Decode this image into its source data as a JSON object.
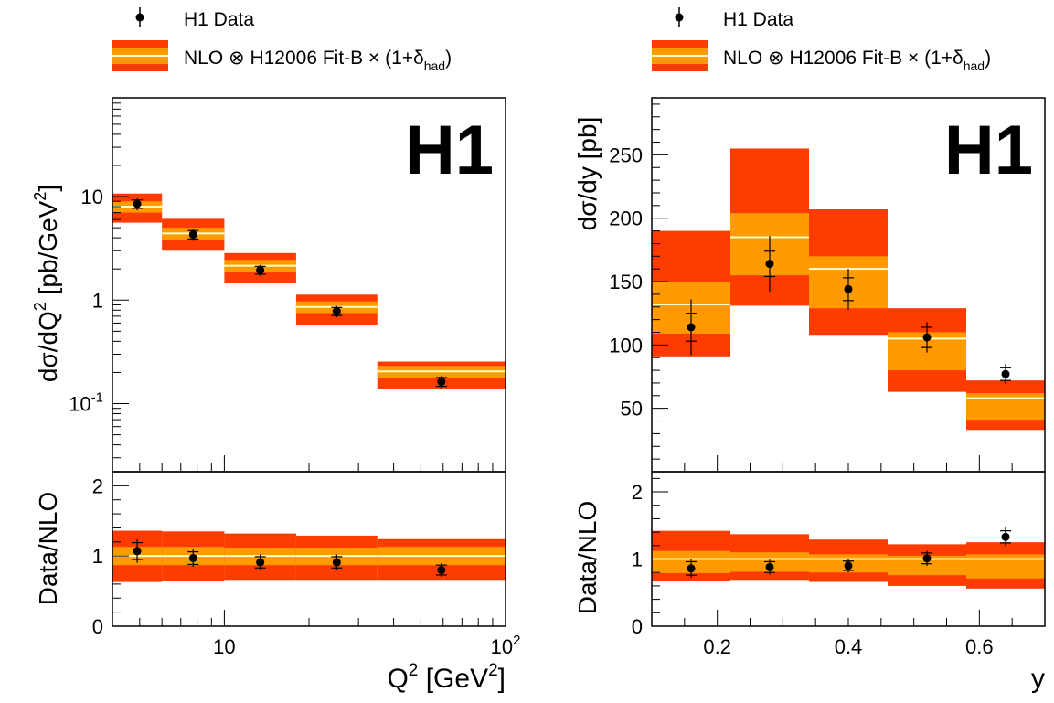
{
  "colors": {
    "outer_band": "#ff3c00",
    "inner_band": "#ff9a00",
    "central_line": "#ffffc8",
    "data_marker": "#000000"
  },
  "legend": [
    {
      "label": "H1 Data",
      "icon": "data-point-with-error-bar"
    },
    {
      "label_main": "NLO ⊗ H12006 Fit-B × (1+δ",
      "label_sub": "had",
      "label_end": ")",
      "icon": "nlo-band-swatch"
    }
  ],
  "chart_data": [
    {
      "type": "bar",
      "id": "q2",
      "logo": "H1",
      "xlabel": {
        "main": "Q",
        "sup": "2",
        "mid": " [GeV",
        "sup2": "2",
        "end": "]"
      },
      "ylabel": {
        "main": "dσ/dQ",
        "sup": "2",
        "mid": " [pb/GeV",
        "sup2": "2",
        "end": "]"
      },
      "ratio_ylabel": "Data/NLO",
      "xscale": "log",
      "yscale": "log",
      "xlim": [
        4,
        100
      ],
      "ylim": [
        0.022,
        90
      ],
      "ratio_ylim": [
        0,
        2.2
      ],
      "x_tick_labels": [
        {
          "value": 10,
          "base": "10",
          "exp": ""
        },
        {
          "value": 100,
          "base": "10",
          "exp": "2"
        }
      ],
      "y_tick_labels": [
        {
          "value": 0.1,
          "base": "10",
          "exp": "-1"
        },
        {
          "value": 1,
          "base": "1",
          "exp": ""
        },
        {
          "value": 10,
          "base": "10",
          "exp": ""
        }
      ],
      "ratio_y_tick_labels": [
        "0",
        "1",
        "2"
      ],
      "bins": [
        {
          "lo": 4,
          "hi": 6,
          "nlo": 8.0,
          "inner": [
            7.0,
            9.0
          ],
          "outer": [
            5.6,
            10.7
          ],
          "data": 8.5,
          "err": 0.8
        },
        {
          "lo": 6,
          "hi": 10,
          "nlo": 4.4,
          "inner": [
            3.8,
            5.0
          ],
          "outer": [
            3.0,
            6.1
          ],
          "data": 4.3,
          "err": 0.4
        },
        {
          "lo": 10,
          "hi": 18,
          "nlo": 2.15,
          "inner": [
            1.85,
            2.45
          ],
          "outer": [
            1.45,
            2.85
          ],
          "data": 1.95,
          "err": 0.17
        },
        {
          "lo": 18,
          "hi": 35,
          "nlo": 0.86,
          "inner": [
            0.75,
            0.97
          ],
          "outer": [
            0.58,
            1.13
          ],
          "data": 0.78,
          "err": 0.07
        },
        {
          "lo": 35,
          "hi": 100,
          "nlo": 0.205,
          "inner": [
            0.178,
            0.232
          ],
          "outer": [
            0.14,
            0.255
          ],
          "data": 0.163,
          "err": 0.016
        }
      ],
      "ratio_bins": [
        {
          "lo": 4,
          "hi": 6,
          "nlo": 1.0,
          "inner": [
            0.87,
            1.13
          ],
          "outer": [
            0.63,
            1.36
          ],
          "data": 1.07,
          "err": 0.12
        },
        {
          "lo": 6,
          "hi": 10,
          "nlo": 1.0,
          "inner": [
            0.87,
            1.13
          ],
          "outer": [
            0.64,
            1.35
          ],
          "data": 0.97,
          "err": 0.09
        },
        {
          "lo": 10,
          "hi": 18,
          "nlo": 1.0,
          "inner": [
            0.87,
            1.12
          ],
          "outer": [
            0.66,
            1.32
          ],
          "data": 0.91,
          "err": 0.08
        },
        {
          "lo": 18,
          "hi": 35,
          "nlo": 1.0,
          "inner": [
            0.87,
            1.12
          ],
          "outer": [
            0.66,
            1.29
          ],
          "data": 0.91,
          "err": 0.08
        },
        {
          "lo": 35,
          "hi": 100,
          "nlo": 1.0,
          "inner": [
            0.87,
            1.13
          ],
          "outer": [
            0.66,
            1.24
          ],
          "data": 0.8,
          "err": 0.07
        }
      ]
    },
    {
      "type": "bar",
      "id": "y",
      "logo": "H1",
      "xlabel": {
        "main": "y"
      },
      "ylabel": {
        "main": "dσ/dy [pb]"
      },
      "ratio_ylabel": "Data/NLO",
      "xscale": "linear",
      "yscale": "linear",
      "xlim": [
        0.1,
        0.7
      ],
      "ylim": [
        0,
        295
      ],
      "ratio_ylim": [
        0,
        2.3
      ],
      "x_ticks": [
        0.2,
        0.4,
        0.6
      ],
      "x_tick_labels": [
        "0.2",
        "0.4",
        "0.6"
      ],
      "y_ticks": [
        50,
        100,
        150,
        200,
        250
      ],
      "y_tick_labels": [
        "50",
        "100",
        "150",
        "200",
        "250"
      ],
      "ratio_y_ticks": [
        0,
        1,
        2
      ],
      "ratio_y_tick_labels": [
        "0",
        "1",
        "2"
      ],
      "bins": [
        {
          "lo": 0.1,
          "hi": 0.22,
          "nlo": 132,
          "inner": [
            109,
            150
          ],
          "outer": [
            91,
            190
          ],
          "data": 114,
          "err": 11,
          "err_tot": 22
        },
        {
          "lo": 0.22,
          "hi": 0.34,
          "nlo": 185,
          "inner": [
            155,
            204
          ],
          "outer": [
            131,
            255
          ],
          "data": 164,
          "err": 10,
          "err_tot": 22
        },
        {
          "lo": 0.34,
          "hi": 0.46,
          "nlo": 160,
          "inner": [
            129,
            170
          ],
          "outer": [
            108,
            207
          ],
          "data": 144,
          "err": 9,
          "err_tot": 16
        },
        {
          "lo": 0.46,
          "hi": 0.58,
          "nlo": 105,
          "inner": [
            80,
            110
          ],
          "outer": [
            63,
            129
          ],
          "data": 106,
          "err": 8,
          "err_tot": 12
        },
        {
          "lo": 0.58,
          "hi": 0.7,
          "nlo": 58,
          "inner": [
            41,
            62
          ],
          "outer": [
            33,
            72
          ],
          "data": 77,
          "err": 5,
          "err_tot": 8
        }
      ],
      "ratio_bins": [
        {
          "lo": 0.1,
          "hi": 0.22,
          "nlo": 1.0,
          "inner": [
            0.79,
            1.12
          ],
          "outer": [
            0.67,
            1.42
          ],
          "data": 0.86,
          "err": 0.1
        },
        {
          "lo": 0.22,
          "hi": 0.34,
          "nlo": 1.0,
          "inner": [
            0.81,
            1.1
          ],
          "outer": [
            0.69,
            1.37
          ],
          "data": 0.88,
          "err": 0.08
        },
        {
          "lo": 0.34,
          "hi": 0.46,
          "nlo": 1.0,
          "inner": [
            0.8,
            1.07
          ],
          "outer": [
            0.66,
            1.29
          ],
          "data": 0.9,
          "err": 0.07
        },
        {
          "lo": 0.46,
          "hi": 0.58,
          "nlo": 1.0,
          "inner": [
            0.76,
            1.05
          ],
          "outer": [
            0.6,
            1.22
          ],
          "data": 1.01,
          "err": 0.08
        },
        {
          "lo": 0.58,
          "hi": 0.7,
          "nlo": 1.0,
          "inner": [
            0.71,
            1.07
          ],
          "outer": [
            0.56,
            1.25
          ],
          "data": 1.33,
          "err": 0.09,
          "err_tot": 0.14
        }
      ]
    }
  ]
}
